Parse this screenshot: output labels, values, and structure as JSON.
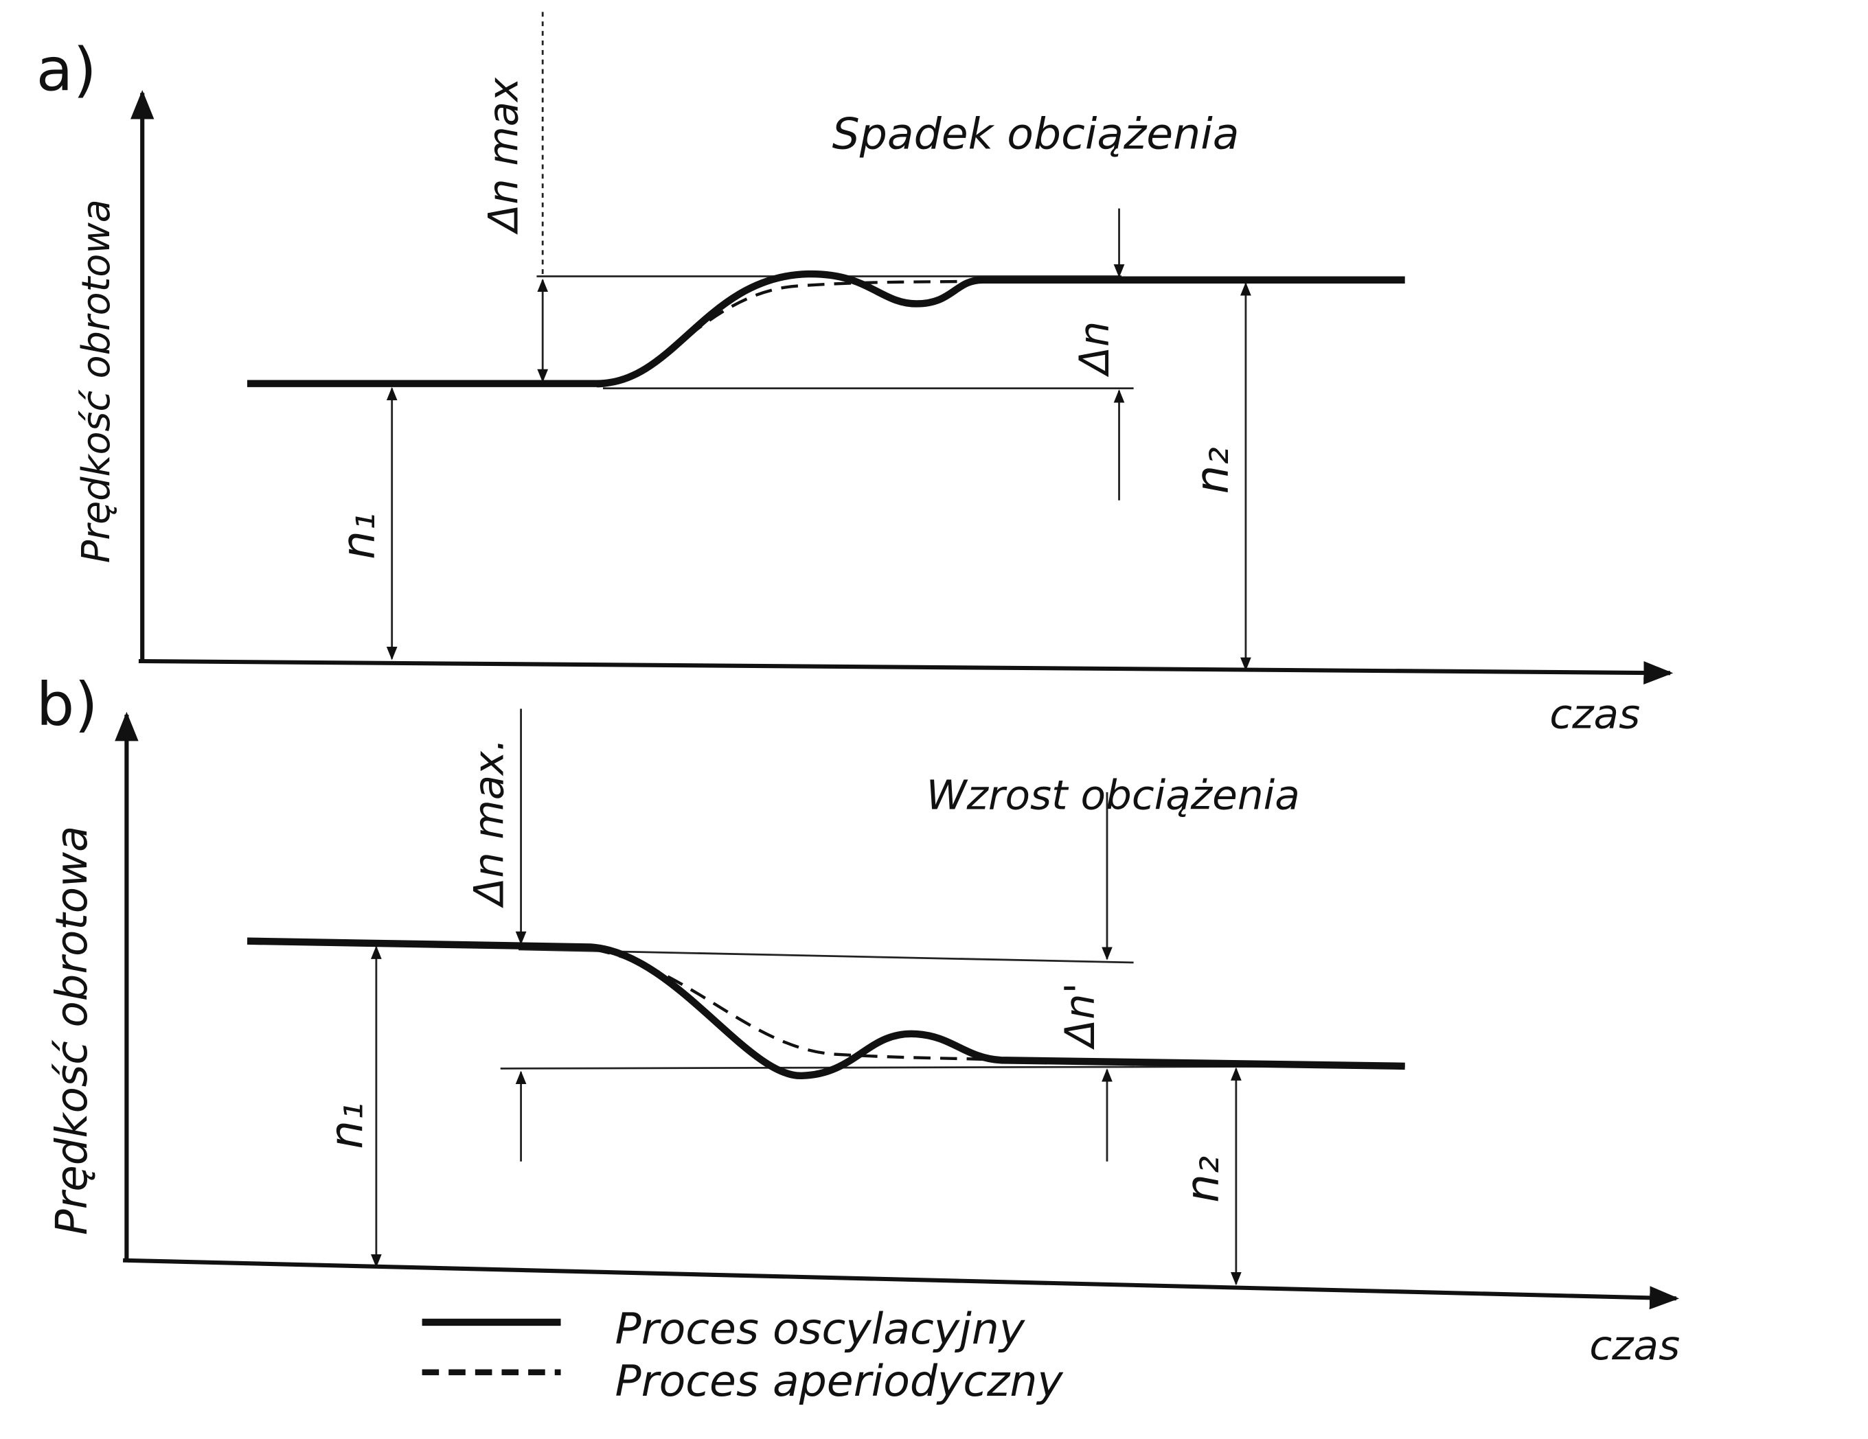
{
  "panels": [
    {
      "label": "a)",
      "y_axis_label": "Prędkość obrotowa",
      "x_axis_label": "czas",
      "title": "Spadek obciążenia",
      "delta_max_label": "Δn max",
      "delta_label": "Δn",
      "n1_label": "n₁",
      "n2_label": "n₂"
    },
    {
      "label": "b)",
      "y_axis_label": "Prędkość obrotowa",
      "x_axis_label": "czas",
      "title": "Wzrost obciążenia",
      "delta_max_label": "Δn max.",
      "delta_label": "Δn'",
      "n1_label": "n₁",
      "n2_label": "n₂"
    }
  ],
  "legend": [
    {
      "label": "Proces oscylacyjny"
    },
    {
      "label": "Proces aperiodyczny"
    }
  ]
}
